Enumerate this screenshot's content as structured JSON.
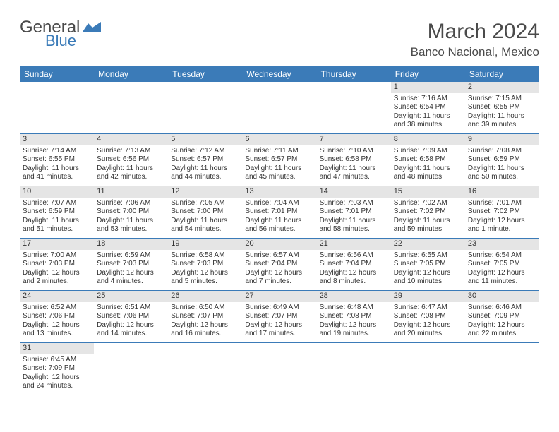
{
  "logo": {
    "text1": "General",
    "text2": "Blue",
    "color1": "#4a4a4a",
    "color2": "#3b7bb8"
  },
  "title": "March 2024",
  "location": "Banco Nacional, Mexico",
  "colors": {
    "headerBar": "#3b7bb8",
    "headerText": "#ffffff",
    "dayNumBg": "#e5e5e5",
    "cellBorder": "#3b7bb8",
    "bodyText": "#333333"
  },
  "typography": {
    "title_fontsize": 30,
    "location_fontsize": 17,
    "dayhead_fontsize": 12,
    "cell_fontsize": 10
  },
  "dayHeaders": [
    "Sunday",
    "Monday",
    "Tuesday",
    "Wednesday",
    "Thursday",
    "Friday",
    "Saturday"
  ],
  "grid": {
    "columns": 7,
    "rows": 6,
    "startOffset": 5,
    "totalDays": 31
  },
  "days": [
    {
      "n": 1,
      "sunrise": "7:16 AM",
      "sunset": "6:54 PM",
      "daylight": "11 hours and 38 minutes."
    },
    {
      "n": 2,
      "sunrise": "7:15 AM",
      "sunset": "6:55 PM",
      "daylight": "11 hours and 39 minutes."
    },
    {
      "n": 3,
      "sunrise": "7:14 AM",
      "sunset": "6:55 PM",
      "daylight": "11 hours and 41 minutes."
    },
    {
      "n": 4,
      "sunrise": "7:13 AM",
      "sunset": "6:56 PM",
      "daylight": "11 hours and 42 minutes."
    },
    {
      "n": 5,
      "sunrise": "7:12 AM",
      "sunset": "6:57 PM",
      "daylight": "11 hours and 44 minutes."
    },
    {
      "n": 6,
      "sunrise": "7:11 AM",
      "sunset": "6:57 PM",
      "daylight": "11 hours and 45 minutes."
    },
    {
      "n": 7,
      "sunrise": "7:10 AM",
      "sunset": "6:58 PM",
      "daylight": "11 hours and 47 minutes."
    },
    {
      "n": 8,
      "sunrise": "7:09 AM",
      "sunset": "6:58 PM",
      "daylight": "11 hours and 48 minutes."
    },
    {
      "n": 9,
      "sunrise": "7:08 AM",
      "sunset": "6:59 PM",
      "daylight": "11 hours and 50 minutes."
    },
    {
      "n": 10,
      "sunrise": "7:07 AM",
      "sunset": "6:59 PM",
      "daylight": "11 hours and 51 minutes."
    },
    {
      "n": 11,
      "sunrise": "7:06 AM",
      "sunset": "7:00 PM",
      "daylight": "11 hours and 53 minutes."
    },
    {
      "n": 12,
      "sunrise": "7:05 AM",
      "sunset": "7:00 PM",
      "daylight": "11 hours and 54 minutes."
    },
    {
      "n": 13,
      "sunrise": "7:04 AM",
      "sunset": "7:01 PM",
      "daylight": "11 hours and 56 minutes."
    },
    {
      "n": 14,
      "sunrise": "7:03 AM",
      "sunset": "7:01 PM",
      "daylight": "11 hours and 58 minutes."
    },
    {
      "n": 15,
      "sunrise": "7:02 AM",
      "sunset": "7:02 PM",
      "daylight": "11 hours and 59 minutes."
    },
    {
      "n": 16,
      "sunrise": "7:01 AM",
      "sunset": "7:02 PM",
      "daylight": "12 hours and 1 minute."
    },
    {
      "n": 17,
      "sunrise": "7:00 AM",
      "sunset": "7:03 PM",
      "daylight": "12 hours and 2 minutes."
    },
    {
      "n": 18,
      "sunrise": "6:59 AM",
      "sunset": "7:03 PM",
      "daylight": "12 hours and 4 minutes."
    },
    {
      "n": 19,
      "sunrise": "6:58 AM",
      "sunset": "7:03 PM",
      "daylight": "12 hours and 5 minutes."
    },
    {
      "n": 20,
      "sunrise": "6:57 AM",
      "sunset": "7:04 PM",
      "daylight": "12 hours and 7 minutes."
    },
    {
      "n": 21,
      "sunrise": "6:56 AM",
      "sunset": "7:04 PM",
      "daylight": "12 hours and 8 minutes."
    },
    {
      "n": 22,
      "sunrise": "6:55 AM",
      "sunset": "7:05 PM",
      "daylight": "12 hours and 10 minutes."
    },
    {
      "n": 23,
      "sunrise": "6:54 AM",
      "sunset": "7:05 PM",
      "daylight": "12 hours and 11 minutes."
    },
    {
      "n": 24,
      "sunrise": "6:52 AM",
      "sunset": "7:06 PM",
      "daylight": "12 hours and 13 minutes."
    },
    {
      "n": 25,
      "sunrise": "6:51 AM",
      "sunset": "7:06 PM",
      "daylight": "12 hours and 14 minutes."
    },
    {
      "n": 26,
      "sunrise": "6:50 AM",
      "sunset": "7:07 PM",
      "daylight": "12 hours and 16 minutes."
    },
    {
      "n": 27,
      "sunrise": "6:49 AM",
      "sunset": "7:07 PM",
      "daylight": "12 hours and 17 minutes."
    },
    {
      "n": 28,
      "sunrise": "6:48 AM",
      "sunset": "7:08 PM",
      "daylight": "12 hours and 19 minutes."
    },
    {
      "n": 29,
      "sunrise": "6:47 AM",
      "sunset": "7:08 PM",
      "daylight": "12 hours and 20 minutes."
    },
    {
      "n": 30,
      "sunrise": "6:46 AM",
      "sunset": "7:09 PM",
      "daylight": "12 hours and 22 minutes."
    },
    {
      "n": 31,
      "sunrise": "6:45 AM",
      "sunset": "7:09 PM",
      "daylight": "12 hours and 24 minutes."
    }
  ],
  "labels": {
    "sunrise": "Sunrise:",
    "sunset": "Sunset:",
    "daylight": "Daylight:"
  }
}
